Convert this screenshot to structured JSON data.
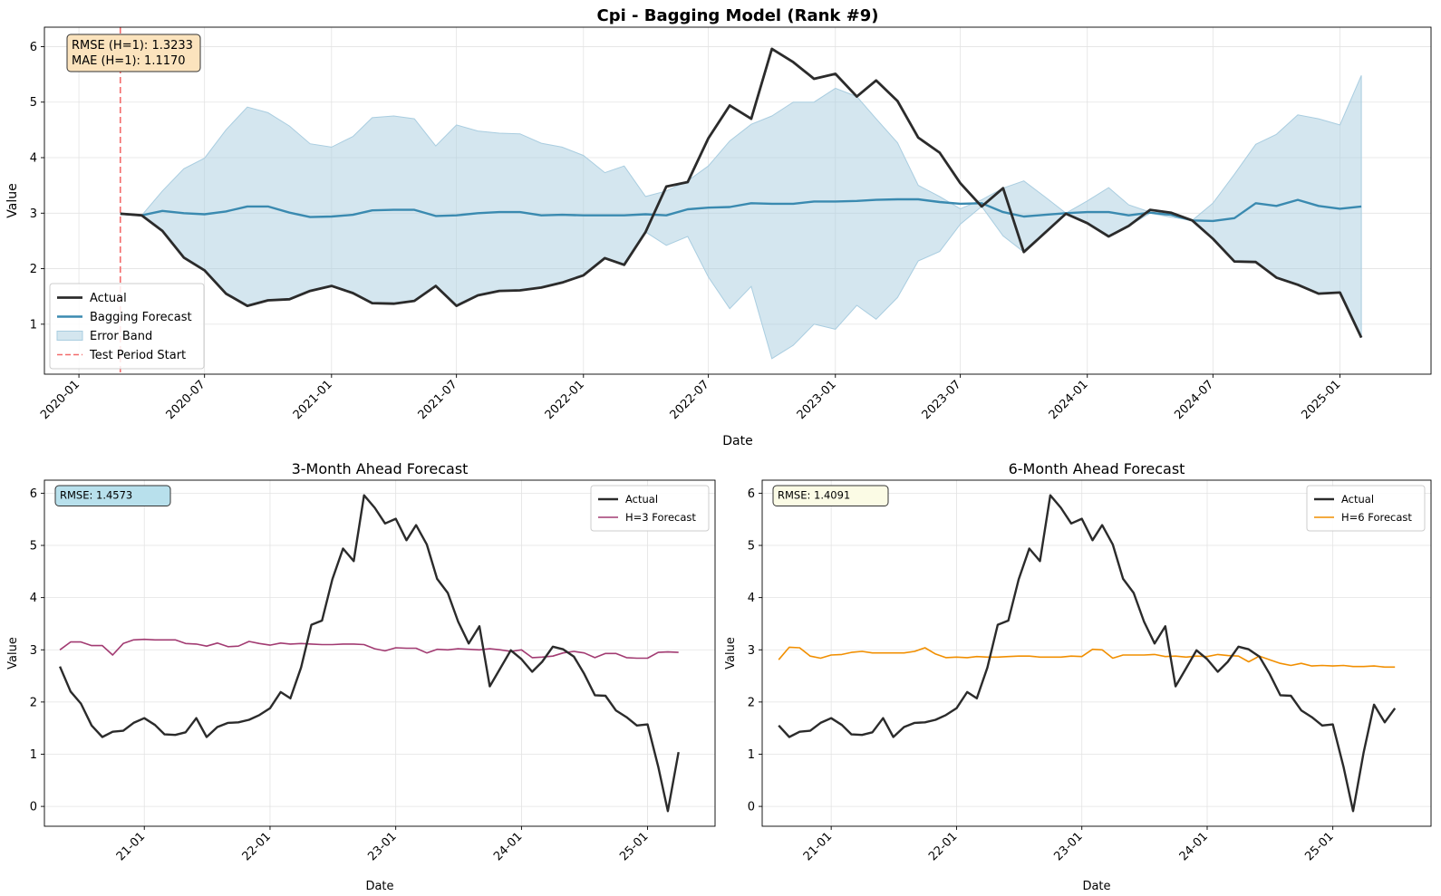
{
  "colors": {
    "actual": "#2b2b2b",
    "bagging": "#3a8ab0",
    "band": "#a9cde0",
    "test_start": "#f36b6b",
    "h3": "#a23b72",
    "h6": "#f18f01",
    "grid": "#e3e3e3",
    "box_main_bg": "#fbe3bd",
    "box_h3_bg": "#b8e0ec",
    "box_h6_bg": "#fbfbe5"
  },
  "chart_data": [
    {
      "type": "line",
      "title": "Cpi - Bagging Model (Rank #9)",
      "xlabel": "Date",
      "ylabel": "Value",
      "x_range": [
        "2019-11-12",
        "2025-05-13"
      ],
      "ylim": [
        0.1,
        6.35
      ],
      "x_ticks": [
        {
          "date": "2020-01-01",
          "label": "2020-01"
        },
        {
          "date": "2020-07-01",
          "label": "2020-07"
        },
        {
          "date": "2021-01-01",
          "label": "2021-01"
        },
        {
          "date": "2021-07-01",
          "label": "2021-07"
        },
        {
          "date": "2022-01-01",
          "label": "2022-01"
        },
        {
          "date": "2022-07-01",
          "label": "2022-07"
        },
        {
          "date": "2023-01-01",
          "label": "2023-01"
        },
        {
          "date": "2023-07-01",
          "label": "2023-07"
        },
        {
          "date": "2024-01-01",
          "label": "2024-01"
        },
        {
          "date": "2024-07-01",
          "label": "2024-07"
        },
        {
          "date": "2025-01-01",
          "label": "2025-01"
        }
      ],
      "y_ticks": [
        1,
        2,
        3,
        4,
        5,
        6
      ],
      "grid": true,
      "legend_position": "lower-left",
      "x": [
        "2020-03",
        "2020-04",
        "2020-05",
        "2020-06",
        "2020-07",
        "2020-08",
        "2020-09",
        "2020-10",
        "2020-11",
        "2020-12",
        "2021-01",
        "2021-02",
        "2021-03",
        "2021-04",
        "2021-05",
        "2021-06",
        "2021-07",
        "2021-08",
        "2021-09",
        "2021-10",
        "2021-11",
        "2021-12",
        "2022-01",
        "2022-02",
        "2022-03",
        "2022-04",
        "2022-05",
        "2022-06",
        "2022-07",
        "2022-08",
        "2022-09",
        "2022-10",
        "2022-11",
        "2022-12",
        "2023-01",
        "2023-02",
        "2023-03",
        "2023-04",
        "2023-05",
        "2023-06",
        "2023-07",
        "2023-08",
        "2023-09",
        "2023-10",
        "2023-11",
        "2023-12",
        "2024-01",
        "2024-02",
        "2024-03",
        "2024-04",
        "2024-05",
        "2024-06",
        "2024-07",
        "2024-08",
        "2024-09",
        "2024-10",
        "2024-11",
        "2024-12",
        "2025-01",
        "2025-02"
      ],
      "series": [
        {
          "name": "Actual",
          "role": "actual",
          "values": [
            2.99,
            2.96,
            2.68,
            2.2,
            1.97,
            1.55,
            1.33,
            1.43,
            1.45,
            1.6,
            1.69,
            1.56,
            1.38,
            1.37,
            1.42,
            1.69,
            1.33,
            1.52,
            1.6,
            1.61,
            1.66,
            1.75,
            1.88,
            2.19,
            2.07,
            2.66,
            3.48,
            3.56,
            4.35,
            4.94,
            4.7,
            5.96,
            5.72,
            5.42,
            5.51,
            5.1,
            5.39,
            5.02,
            4.36,
            4.09,
            3.54,
            3.12,
            3.45,
            2.3,
            2.65,
            2.99,
            2.82,
            2.58,
            2.77,
            3.06,
            3.01,
            2.87,
            2.54,
            2.13,
            2.12,
            1.84,
            1.71,
            1.55,
            1.57,
            0.76
          ]
        },
        {
          "name": "Bagging Forecast",
          "role": "forecast",
          "values": [
            2.99,
            2.96,
            3.04,
            3.0,
            2.98,
            3.03,
            3.12,
            3.12,
            3.01,
            2.93,
            2.94,
            2.97,
            3.05,
            3.06,
            3.06,
            2.95,
            2.96,
            3.0,
            3.02,
            3.02,
            2.96,
            2.97,
            2.96,
            2.96,
            2.96,
            2.98,
            2.96,
            3.07,
            3.1,
            3.11,
            3.18,
            3.17,
            3.17,
            3.21,
            3.21,
            3.22,
            3.24,
            3.25,
            3.25,
            3.2,
            3.17,
            3.18,
            3.02,
            2.94,
            2.97,
            3.0,
            3.02,
            3.02,
            2.96,
            3.01,
            2.97,
            2.87,
            2.86,
            2.91,
            3.18,
            3.13,
            3.24,
            3.13,
            3.08,
            3.12
          ]
        },
        {
          "name": "Error Band",
          "role": "band",
          "upper": [
            2.99,
            2.96,
            3.4,
            3.8,
            3.99,
            4.5,
            4.91,
            4.81,
            4.57,
            4.25,
            4.19,
            4.38,
            4.72,
            4.75,
            4.7,
            4.21,
            4.59,
            4.48,
            4.44,
            4.43,
            4.26,
            4.19,
            4.04,
            3.73,
            3.85,
            3.3,
            3.4,
            3.58,
            3.85,
            4.3,
            4.6,
            4.75,
            5.0,
            5.0,
            5.25,
            5.1,
            4.7,
            4.27,
            3.5,
            3.3,
            3.08,
            3.24,
            3.45,
            3.58,
            3.29,
            3.0,
            3.22,
            3.46,
            3.15,
            3.02,
            2.93,
            2.87,
            3.18,
            3.7,
            4.24,
            4.42,
            4.77,
            4.7,
            4.59,
            5.48
          ],
          "lower": [
            2.99,
            2.96,
            2.68,
            2.2,
            1.97,
            1.55,
            1.33,
            1.43,
            1.45,
            1.6,
            1.69,
            1.56,
            1.38,
            1.37,
            1.42,
            1.69,
            1.33,
            1.52,
            1.6,
            1.61,
            1.66,
            1.75,
            1.88,
            2.19,
            2.07,
            2.66,
            2.42,
            2.58,
            1.85,
            1.28,
            1.68,
            0.38,
            0.62,
            1.0,
            0.91,
            1.34,
            1.09,
            1.48,
            2.14,
            2.31,
            2.8,
            3.12,
            2.59,
            2.3,
            2.65,
            2.99,
            2.82,
            2.58,
            2.77,
            3.0,
            2.93,
            2.87,
            2.54,
            2.13,
            2.12,
            1.84,
            1.71,
            1.55,
            1.57,
            0.76
          ]
        },
        {
          "name": "Test Period Start",
          "role": "vline",
          "x": "2020-03"
        }
      ],
      "annotations": [
        "RMSE (H=1): 1.3233",
        "MAE (H=1): 1.1170"
      ]
    },
    {
      "type": "line",
      "title": "3-Month Ahead Forecast",
      "xlabel": "Date",
      "ylabel": "Value",
      "x_range": [
        "2020-03-17",
        "2025-07-16"
      ],
      "ylim": [
        -0.38,
        6.25
      ],
      "x_ticks": [
        {
          "date": "2021-01-01",
          "label": "21-01"
        },
        {
          "date": "2022-01-01",
          "label": "22-01"
        },
        {
          "date": "2023-01-01",
          "label": "23-01"
        },
        {
          "date": "2024-01-01",
          "label": "24-01"
        },
        {
          "date": "2025-01-01",
          "label": "25-01"
        }
      ],
      "y_ticks": [
        0,
        1,
        2,
        3,
        4,
        5,
        6
      ],
      "grid": true,
      "legend_position": "top-right",
      "x": [
        "2020-05",
        "2020-06",
        "2020-07",
        "2020-08",
        "2020-09",
        "2020-10",
        "2020-11",
        "2020-12",
        "2021-01",
        "2021-02",
        "2021-03",
        "2021-04",
        "2021-05",
        "2021-06",
        "2021-07",
        "2021-08",
        "2021-09",
        "2021-10",
        "2021-11",
        "2021-12",
        "2022-01",
        "2022-02",
        "2022-03",
        "2022-04",
        "2022-05",
        "2022-06",
        "2022-07",
        "2022-08",
        "2022-09",
        "2022-10",
        "2022-11",
        "2022-12",
        "2023-01",
        "2023-02",
        "2023-03",
        "2023-04",
        "2023-05",
        "2023-06",
        "2023-07",
        "2023-08",
        "2023-09",
        "2023-10",
        "2023-11",
        "2023-12",
        "2024-01",
        "2024-02",
        "2024-03",
        "2024-04",
        "2024-05",
        "2024-06",
        "2024-07",
        "2024-08",
        "2024-09",
        "2024-10",
        "2024-11",
        "2024-12",
        "2025-01",
        "2025-02",
        "2025-03",
        "2025-04"
      ],
      "series": [
        {
          "name": "Actual",
          "role": "actual",
          "values": [
            2.68,
            2.2,
            1.97,
            1.55,
            1.33,
            1.43,
            1.45,
            1.6,
            1.69,
            1.56,
            1.38,
            1.37,
            1.42,
            1.69,
            1.33,
            1.52,
            1.6,
            1.61,
            1.66,
            1.75,
            1.88,
            2.19,
            2.07,
            2.66,
            3.48,
            3.56,
            4.35,
            4.94,
            4.7,
            5.96,
            5.72,
            5.42,
            5.51,
            5.1,
            5.39,
            5.02,
            4.36,
            4.09,
            3.54,
            3.12,
            3.45,
            2.3,
            2.65,
            2.99,
            2.82,
            2.58,
            2.77,
            3.06,
            3.01,
            2.87,
            2.54,
            2.13,
            2.12,
            1.84,
            1.71,
            1.55,
            1.57,
            0.76,
            -0.09,
            1.04
          ]
        },
        {
          "name": "H=3 Forecast",
          "role": "h3",
          "values": [
            3.0,
            3.15,
            3.15,
            3.08,
            3.08,
            2.9,
            3.12,
            3.19,
            3.2,
            3.19,
            3.19,
            3.19,
            3.12,
            3.11,
            3.07,
            3.13,
            3.06,
            3.07,
            3.16,
            3.12,
            3.09,
            3.13,
            3.11,
            3.12,
            3.11,
            3.1,
            3.1,
            3.11,
            3.11,
            3.1,
            3.02,
            2.98,
            3.04,
            3.03,
            3.03,
            2.94,
            3.01,
            3.0,
            3.02,
            3.01,
            3.0,
            3.02,
            3.0,
            2.97,
            3.0,
            2.85,
            2.86,
            2.88,
            2.94,
            2.97,
            2.94,
            2.85,
            2.93,
            2.93,
            2.85,
            2.84,
            2.84,
            2.95,
            2.96,
            2.95
          ]
        }
      ],
      "annotations": [
        "RMSE: 1.4573"
      ]
    },
    {
      "type": "line",
      "title": "6-Month Ahead Forecast",
      "xlabel": "Date",
      "ylabel": "Value",
      "x_range": [
        "2020-06-14",
        "2025-10-14"
      ],
      "ylim": [
        -0.38,
        6.25
      ],
      "x_ticks": [
        {
          "date": "2021-01-01",
          "label": "21-01"
        },
        {
          "date": "2022-01-01",
          "label": "22-01"
        },
        {
          "date": "2023-01-01",
          "label": "23-01"
        },
        {
          "date": "2024-01-01",
          "label": "24-01"
        },
        {
          "date": "2025-01-01",
          "label": "25-01"
        }
      ],
      "y_ticks": [
        0,
        1,
        2,
        3,
        4,
        5,
        6
      ],
      "grid": true,
      "legend_position": "top-right",
      "x": [
        "2020-08",
        "2020-09",
        "2020-10",
        "2020-11",
        "2020-12",
        "2021-01",
        "2021-02",
        "2021-03",
        "2021-04",
        "2021-05",
        "2021-06",
        "2021-07",
        "2021-08",
        "2021-09",
        "2021-10",
        "2021-11",
        "2021-12",
        "2022-01",
        "2022-02",
        "2022-03",
        "2022-04",
        "2022-05",
        "2022-06",
        "2022-07",
        "2022-08",
        "2022-09",
        "2022-10",
        "2022-11",
        "2022-12",
        "2023-01",
        "2023-02",
        "2023-03",
        "2023-04",
        "2023-05",
        "2023-06",
        "2023-07",
        "2023-08",
        "2023-09",
        "2023-10",
        "2023-11",
        "2023-12",
        "2024-01",
        "2024-02",
        "2024-03",
        "2024-04",
        "2024-05",
        "2024-06",
        "2024-07",
        "2024-08",
        "2024-09",
        "2024-10",
        "2024-11",
        "2024-12",
        "2025-01",
        "2025-02",
        "2025-03",
        "2025-04",
        "2025-05",
        "2025-06",
        "2025-07"
      ],
      "series": [
        {
          "name": "Actual",
          "role": "actual",
          "values": [
            1.55,
            1.33,
            1.43,
            1.45,
            1.6,
            1.69,
            1.56,
            1.38,
            1.37,
            1.42,
            1.69,
            1.33,
            1.52,
            1.6,
            1.61,
            1.66,
            1.75,
            1.88,
            2.19,
            2.07,
            2.66,
            3.48,
            3.56,
            4.35,
            4.94,
            4.7,
            5.96,
            5.72,
            5.42,
            5.51,
            5.1,
            5.39,
            5.02,
            4.36,
            4.09,
            3.54,
            3.12,
            3.45,
            2.3,
            2.65,
            2.99,
            2.82,
            2.58,
            2.77,
            3.06,
            3.01,
            2.87,
            2.54,
            2.13,
            2.12,
            1.84,
            1.71,
            1.55,
            1.57,
            0.76,
            -0.09,
            1.04,
            1.95,
            1.61,
            1.88
          ]
        },
        {
          "name": "H=6 Forecast",
          "role": "h6",
          "values": [
            2.81,
            3.05,
            3.04,
            2.88,
            2.84,
            2.9,
            2.91,
            2.95,
            2.97,
            2.94,
            2.94,
            2.94,
            2.94,
            2.97,
            3.04,
            2.92,
            2.85,
            2.86,
            2.85,
            2.87,
            2.86,
            2.86,
            2.87,
            2.88,
            2.88,
            2.86,
            2.86,
            2.86,
            2.88,
            2.87,
            3.01,
            3.0,
            2.84,
            2.9,
            2.9,
            2.9,
            2.91,
            2.87,
            2.88,
            2.86,
            2.88,
            2.87,
            2.91,
            2.89,
            2.88,
            2.77,
            2.88,
            2.81,
            2.74,
            2.7,
            2.74,
            2.69,
            2.7,
            2.69,
            2.7,
            2.68,
            2.68,
            2.69,
            2.67,
            2.67
          ]
        }
      ],
      "annotations": [
        "RMSE: 1.4091"
      ]
    }
  ]
}
